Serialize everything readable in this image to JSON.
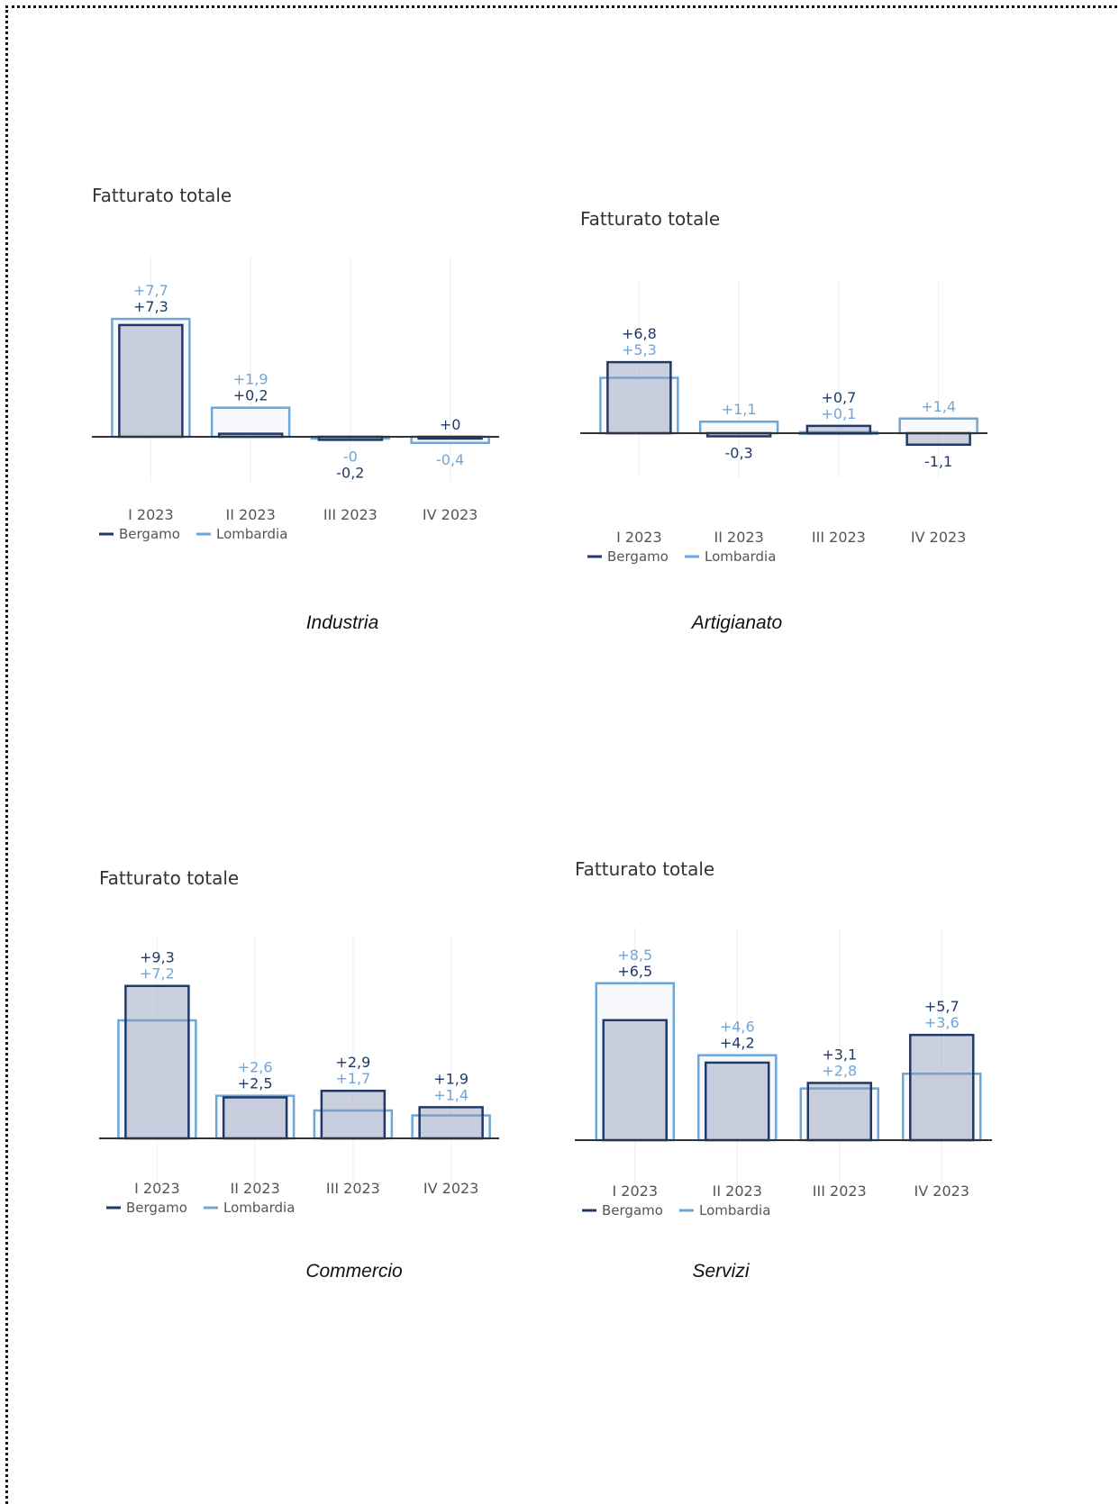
{
  "charts": [
    {
      "title": "Fatturato totale",
      "caption": "Industria",
      "chart_data": {
        "type": "bar",
        "categories": [
          "I 2023",
          "II 2023",
          "III 2023",
          "IV 2023"
        ],
        "series": [
          {
            "name": "Bergamo",
            "color": "#1f3a68",
            "values": [
              7.3,
              0.2,
              -0.2,
              0.0
            ],
            "labels": [
              "+7,3",
              "+0,2",
              "-0,2",
              "+0"
            ]
          },
          {
            "name": "Lombardia",
            "color": "#6fa6d8",
            "values": [
              7.7,
              1.9,
              0.0,
              -0.4
            ],
            "labels": [
              "+7,7",
              "+1,9",
              "-0",
              "-0,4"
            ]
          }
        ],
        "ylim": [
          -2.5,
          11.5
        ],
        "legend": "bottom-left"
      }
    },
    {
      "title": "Fatturato totale",
      "caption": "Artigianato",
      "chart_data": {
        "type": "bar",
        "categories": [
          "I 2023",
          "II 2023",
          "III 2023",
          "IV 2023"
        ],
        "series": [
          {
            "name": "Bergamo",
            "color": "#1f3a68",
            "values": [
              6.8,
              -0.3,
              0.7,
              -1.1
            ],
            "labels": [
              "+6,8",
              "-0,3",
              "+0,7",
              "-1,1"
            ]
          },
          {
            "name": "Lombardia",
            "color": "#6fa6d8",
            "values": [
              5.3,
              1.1,
              0.1,
              1.4
            ],
            "labels": [
              "+5,3",
              "+1,1",
              "+0,1",
              "+1,4"
            ]
          }
        ],
        "ylim": [
          -3.6,
          14.5
        ],
        "legend": "bottom-left"
      }
    },
    {
      "title": "Fatturato totale",
      "caption": "Commercio",
      "chart_data": {
        "type": "bar",
        "categories": [
          "I 2023",
          "II 2023",
          "III 2023",
          "IV 2023"
        ],
        "series": [
          {
            "name": "Bergamo",
            "color": "#1f3a68",
            "values": [
              9.3,
              2.5,
              2.9,
              1.9
            ],
            "labels": [
              "+9,3",
              "+2,5",
              "+2,9",
              "+1,9"
            ]
          },
          {
            "name": "Lombardia",
            "color": "#6fa6d8",
            "values": [
              7.2,
              2.6,
              1.7,
              1.4
            ],
            "labels": [
              "+7,2",
              "+2,6",
              "+1,7",
              "+1,4"
            ]
          }
        ],
        "ylim": [
          -2.0,
          15.0
        ],
        "legend": "bottom-left"
      }
    },
    {
      "title": "Fatturato totale",
      "caption": "Servizi",
      "chart_data": {
        "type": "bar",
        "categories": [
          "I 2023",
          "II 2023",
          "III 2023",
          "IV 2023"
        ],
        "series": [
          {
            "name": "Bergamo",
            "color": "#1f3a68",
            "values": [
              6.5,
              4.2,
              3.1,
              5.7
            ],
            "labels": [
              "+6,5",
              "+4,2",
              "+3,1",
              "+5,7"
            ]
          },
          {
            "name": "Lombardia",
            "color": "#6fa6d8",
            "values": [
              8.5,
              4.6,
              2.8,
              3.6
            ],
            "labels": [
              "+8,5",
              "+4,6",
              "+2,8",
              "+3,6"
            ]
          }
        ],
        "ylim": [
          -1.6,
          11.7
        ],
        "legend": "bottom-left"
      }
    }
  ]
}
